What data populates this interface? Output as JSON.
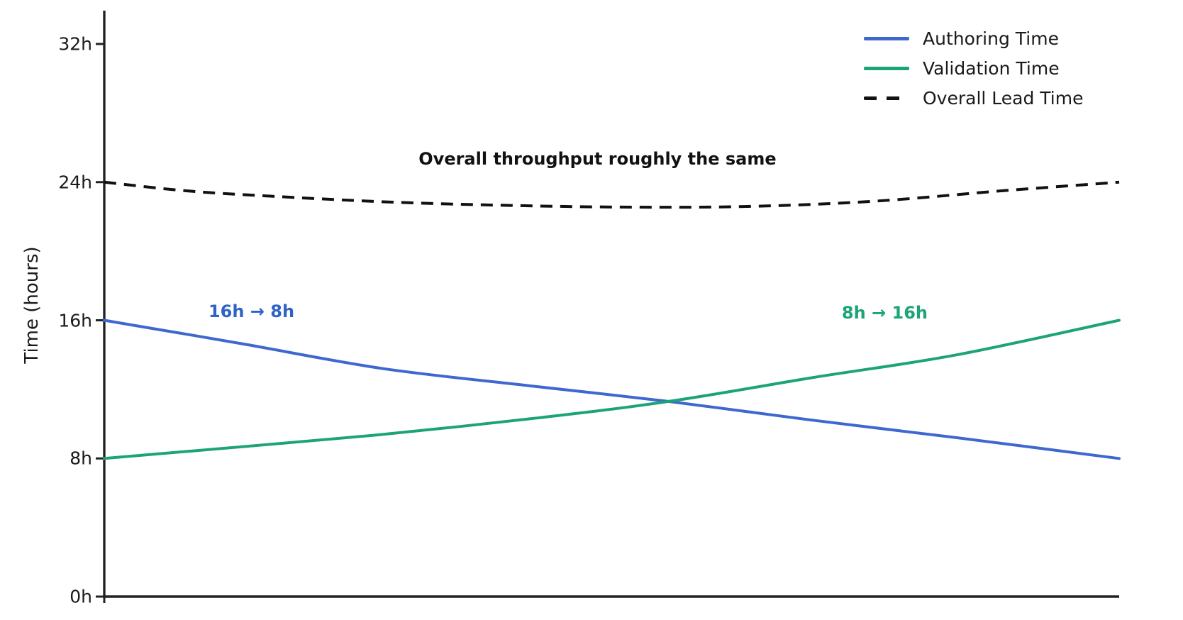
{
  "chart_data": {
    "type": "line",
    "title": "",
    "ylabel": "Time (hours)",
    "ylim": [
      0,
      32
    ],
    "grid": false,
    "legend_position": "upper right",
    "axis_color": "#222222",
    "text_color": "#1a1a1a",
    "yticks": [
      {
        "label": "0h",
        "hours": 0
      },
      {
        "label": "8h",
        "hours": 8
      },
      {
        "label": "16h",
        "hours": 16
      },
      {
        "label": "24h",
        "hours": 24
      },
      {
        "label": "32h",
        "hours": 32
      }
    ],
    "series": [
      {
        "name": "Authoring Time",
        "color": "#3e68cf",
        "style": "solid",
        "points": [
          [
            0,
            16.0
          ],
          [
            0.07,
            15.3
          ],
          [
            0.14,
            14.6
          ],
          [
            0.275,
            13.2
          ],
          [
            0.42,
            12.2
          ],
          [
            0.556,
            11.3
          ],
          [
            0.7,
            10.2
          ],
          [
            0.84,
            9.2
          ],
          [
            1,
            8.0
          ]
        ]
      },
      {
        "name": "Validation Time",
        "color": "#1da476",
        "style": "solid",
        "points": [
          [
            0,
            8.0
          ],
          [
            0.07,
            8.35
          ],
          [
            0.14,
            8.7
          ],
          [
            0.275,
            9.4
          ],
          [
            0.42,
            10.3
          ],
          [
            0.556,
            11.3
          ],
          [
            0.7,
            12.7
          ],
          [
            0.84,
            14.0
          ],
          [
            1,
            16.0
          ]
        ]
      },
      {
        "name": "Overall Lead Time",
        "color": "#111111",
        "style": "dashed",
        "points": [
          [
            0,
            24.0
          ],
          [
            0.08,
            23.5
          ],
          [
            0.16,
            23.2
          ],
          [
            0.28,
            22.85
          ],
          [
            0.4,
            22.65
          ],
          [
            0.52,
            22.55
          ],
          [
            0.64,
            22.6
          ],
          [
            0.76,
            22.9
          ],
          [
            0.885,
            23.5
          ],
          [
            1,
            24.0
          ]
        ]
      }
    ],
    "annotations": [
      {
        "text": "Overall throughput roughly the same",
        "color": "#111111",
        "t": 0.486,
        "hours": 25.35,
        "kind": "main"
      },
      {
        "text": "16h → 8h",
        "color": "#2f63c7",
        "t": 0.145,
        "hours": 16.5,
        "kind": "series-note"
      },
      {
        "text": "8h → 16h",
        "color": "#1da476",
        "t": 0.769,
        "hours": 16.45,
        "kind": "series-note"
      }
    ]
  }
}
